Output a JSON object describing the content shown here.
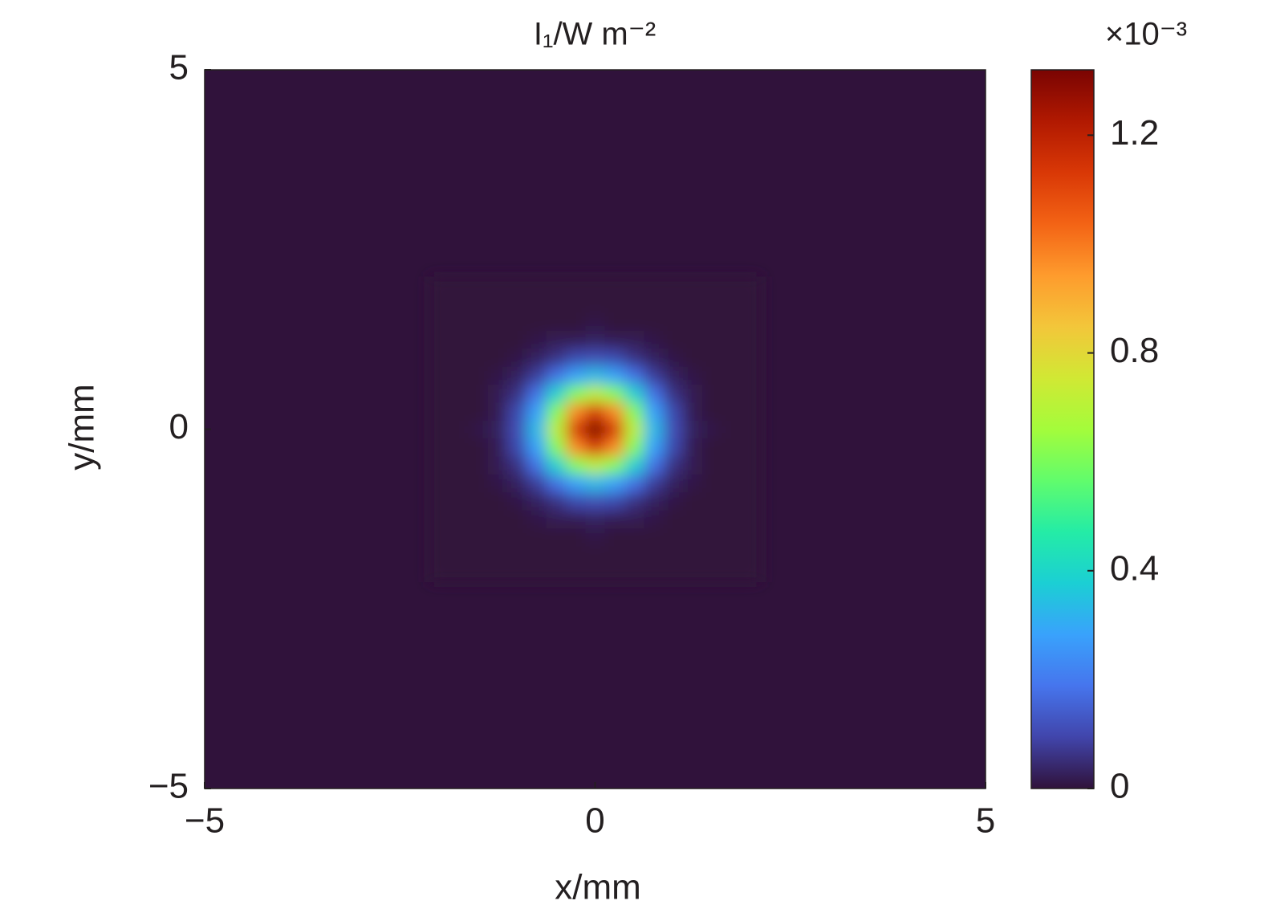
{
  "chart_data": {
    "type": "heatmap",
    "title": "I₁/W m⁻²",
    "xlabel": "x/mm",
    "ylabel": "y/mm",
    "xlim": [
      -5,
      5
    ],
    "ylim": [
      -5,
      5
    ],
    "xticks": [
      {
        "value": -5,
        "label": "−5"
      },
      0,
      5
    ],
    "yticks": [
      {
        "value": -5,
        "label": "−5"
      },
      0,
      5
    ],
    "colorbar": {
      "multiplier": "×10⁻³",
      "clim": [
        0,
        1.32
      ],
      "ticks": [
        0,
        0.4,
        0.8,
        1.2
      ]
    },
    "colormap": [
      "#30123b",
      "#4145ab",
      "#4675ed",
      "#39a2fc",
      "#1bcfd4",
      "#24eca6",
      "#61fc6c",
      "#a4fc3b",
      "#d1e834",
      "#f3c63a",
      "#fe9b2d",
      "#f36315",
      "#d93806",
      "#b11901",
      "#7a0402"
    ],
    "x": [
      -2,
      -1.75,
      -1.5,
      -1.25,
      -1,
      -0.75,
      -0.5,
      -0.25,
      0,
      0.25,
      0.5,
      0.75,
      1,
      1.25,
      1.5,
      1.75,
      2
    ],
    "y": [
      -2,
      -1.75,
      -1.5,
      -1.25,
      -1,
      -0.75,
      -0.5,
      -0.25,
      0,
      0.25,
      0.5,
      0.75,
      1,
      1.25,
      1.5,
      1.75,
      2
    ],
    "z": [
      [
        0,
        0,
        0,
        0,
        0,
        0,
        0,
        0,
        0,
        0,
        0,
        0,
        0,
        0,
        0,
        0,
        0
      ],
      [
        0,
        0,
        0,
        0,
        0,
        0,
        0,
        0,
        0,
        0,
        0,
        0,
        0,
        0,
        0,
        0,
        0
      ],
      [
        0,
        0,
        0,
        0,
        0,
        0,
        0,
        0,
        0.01,
        0,
        0,
        0,
        0,
        0,
        0,
        0,
        0
      ],
      [
        0,
        0,
        0,
        0,
        0,
        0.01,
        0.02,
        0.02,
        0.03,
        0.02,
        0.02,
        0.01,
        0,
        0,
        0,
        0,
        0
      ],
      [
        0,
        0,
        0,
        0,
        0.01,
        0.03,
        0.06,
        0.1,
        0.11,
        0.1,
        0.06,
        0.03,
        0.01,
        0,
        0,
        0,
        0
      ],
      [
        0,
        0,
        0,
        0.01,
        0.03,
        0.08,
        0.18,
        0.28,
        0.33,
        0.28,
        0.18,
        0.08,
        0.03,
        0.01,
        0,
        0,
        0
      ],
      [
        0,
        0,
        0,
        0.02,
        0.06,
        0.18,
        0.38,
        0.61,
        0.71,
        0.61,
        0.38,
        0.18,
        0.06,
        0.02,
        0,
        0,
        0
      ],
      [
        0,
        0,
        0,
        0.02,
        0.1,
        0.28,
        0.61,
        0.97,
        1.13,
        0.97,
        0.61,
        0.28,
        0.1,
        0.02,
        0,
        0,
        0
      ],
      [
        0,
        0,
        0.01,
        0.03,
        0.11,
        0.33,
        0.71,
        1.13,
        1.32,
        1.13,
        0.71,
        0.33,
        0.11,
        0.03,
        0.01,
        0,
        0
      ],
      [
        0,
        0,
        0,
        0.02,
        0.1,
        0.28,
        0.61,
        0.97,
        1.13,
        0.97,
        0.61,
        0.28,
        0.1,
        0.02,
        0,
        0,
        0
      ],
      [
        0,
        0,
        0,
        0.02,
        0.06,
        0.18,
        0.38,
        0.61,
        0.71,
        0.61,
        0.38,
        0.18,
        0.06,
        0.02,
        0,
        0,
        0
      ],
      [
        0,
        0,
        0,
        0.01,
        0.03,
        0.08,
        0.18,
        0.28,
        0.33,
        0.28,
        0.18,
        0.08,
        0.03,
        0.01,
        0,
        0,
        0
      ],
      [
        0,
        0,
        0,
        0,
        0.01,
        0.03,
        0.06,
        0.1,
        0.11,
        0.1,
        0.06,
        0.03,
        0.01,
        0,
        0,
        0,
        0
      ],
      [
        0,
        0,
        0,
        0,
        0,
        0.01,
        0.02,
        0.02,
        0.03,
        0.02,
        0.02,
        0.01,
        0,
        0,
        0,
        0,
        0
      ],
      [
        0,
        0,
        0,
        0,
        0,
        0,
        0,
        0,
        0.01,
        0,
        0,
        0,
        0,
        0,
        0,
        0,
        0
      ],
      [
        0,
        0,
        0,
        0,
        0,
        0,
        0,
        0,
        0,
        0,
        0,
        0,
        0,
        0,
        0,
        0,
        0
      ],
      [
        0,
        0,
        0,
        0,
        0,
        0,
        0,
        0,
        0,
        0,
        0,
        0,
        0,
        0,
        0,
        0,
        0
      ]
    ]
  }
}
